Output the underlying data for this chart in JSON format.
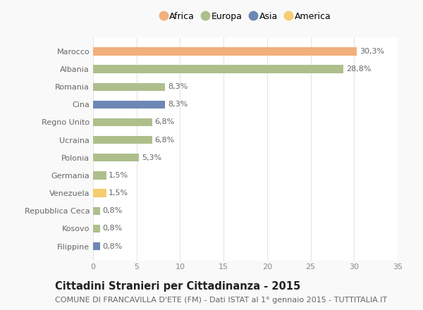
{
  "categories": [
    "Marocco",
    "Albania",
    "Romania",
    "Cina",
    "Regno Unito",
    "Ucraina",
    "Polonia",
    "Germania",
    "Venezuela",
    "Repubblica Ceca",
    "Kosovo",
    "Filippine"
  ],
  "values": [
    30.3,
    28.8,
    8.3,
    8.3,
    6.8,
    6.8,
    5.3,
    1.5,
    1.5,
    0.8,
    0.8,
    0.8
  ],
  "labels": [
    "30,3%",
    "28,8%",
    "8,3%",
    "8,3%",
    "6,8%",
    "6,8%",
    "5,3%",
    "1,5%",
    "1,5%",
    "0,8%",
    "0,8%",
    "0,8%"
  ],
  "colors": [
    "#F2B07B",
    "#AEBF8C",
    "#AEBF8C",
    "#6E87B5",
    "#AEBF8C",
    "#AEBF8C",
    "#AEBF8C",
    "#AEBF8C",
    "#F5CC6E",
    "#AEBF8C",
    "#AEBF8C",
    "#6E87B5"
  ],
  "legend_labels": [
    "Africa",
    "Europa",
    "Asia",
    "America"
  ],
  "legend_colors": [
    "#F2B07B",
    "#AEBF8C",
    "#6E87B5",
    "#F5CC6E"
  ],
  "title": "Cittadini Stranieri per Cittadinanza - 2015",
  "subtitle": "COMUNE DI FRANCAVILLA D'ETE (FM) - Dati ISTAT al 1° gennaio 2015 - TUTTITALIA.IT",
  "xlim": [
    0,
    35
  ],
  "xticks": [
    0,
    5,
    10,
    15,
    20,
    25,
    30,
    35
  ],
  "background_color": "#f9f9f9",
  "plot_bg_color": "#ffffff",
  "grid_color": "#e5e5e5",
  "title_fontsize": 10.5,
  "subtitle_fontsize": 8,
  "label_fontsize": 8,
  "tick_fontsize": 8,
  "legend_fontsize": 9,
  "bar_height": 0.45
}
